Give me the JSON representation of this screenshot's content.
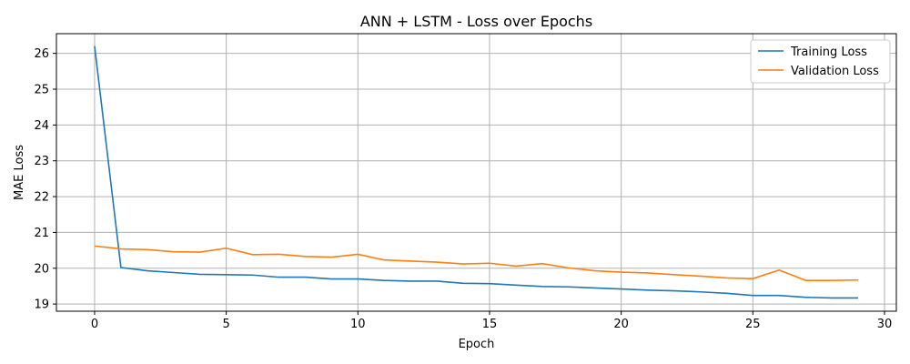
{
  "chart_data": {
    "type": "line",
    "title": "ANN + LSTM - Loss over Epochs",
    "xlabel": "Epoch",
    "ylabel": "MAE Loss",
    "xlim": [
      -1.45,
      30.45
    ],
    "ylim": [
      18.8,
      26.55
    ],
    "xticks": [
      0,
      5,
      10,
      15,
      20,
      25,
      30
    ],
    "yticks": [
      19,
      20,
      21,
      22,
      23,
      24,
      25,
      26
    ],
    "grid": true,
    "legend_position": "top-right",
    "x": [
      0,
      1,
      2,
      3,
      4,
      5,
      6,
      7,
      8,
      9,
      10,
      11,
      12,
      13,
      14,
      15,
      16,
      17,
      18,
      19,
      20,
      21,
      22,
      23,
      24,
      25,
      26,
      27,
      28,
      29
    ],
    "series": [
      {
        "name": "Training Loss",
        "color": "#1f77b4",
        "values": [
          26.2,
          20.02,
          19.93,
          19.88,
          19.83,
          19.82,
          19.81,
          19.75,
          19.75,
          19.7,
          19.7,
          19.66,
          19.64,
          19.64,
          19.58,
          19.57,
          19.53,
          19.49,
          19.48,
          19.45,
          19.42,
          19.39,
          19.37,
          19.34,
          19.3,
          19.24,
          19.24,
          19.19,
          19.17,
          19.17
        ]
      },
      {
        "name": "Validation Loss",
        "color": "#ff7f0e",
        "values": [
          20.62,
          20.54,
          20.52,
          20.46,
          20.45,
          20.56,
          20.38,
          20.39,
          20.33,
          20.31,
          20.39,
          20.23,
          20.2,
          20.17,
          20.12,
          20.14,
          20.06,
          20.13,
          20.01,
          19.93,
          19.89,
          19.87,
          19.82,
          19.78,
          19.73,
          19.71,
          19.95,
          19.66,
          19.66,
          19.67
        ]
      }
    ]
  }
}
